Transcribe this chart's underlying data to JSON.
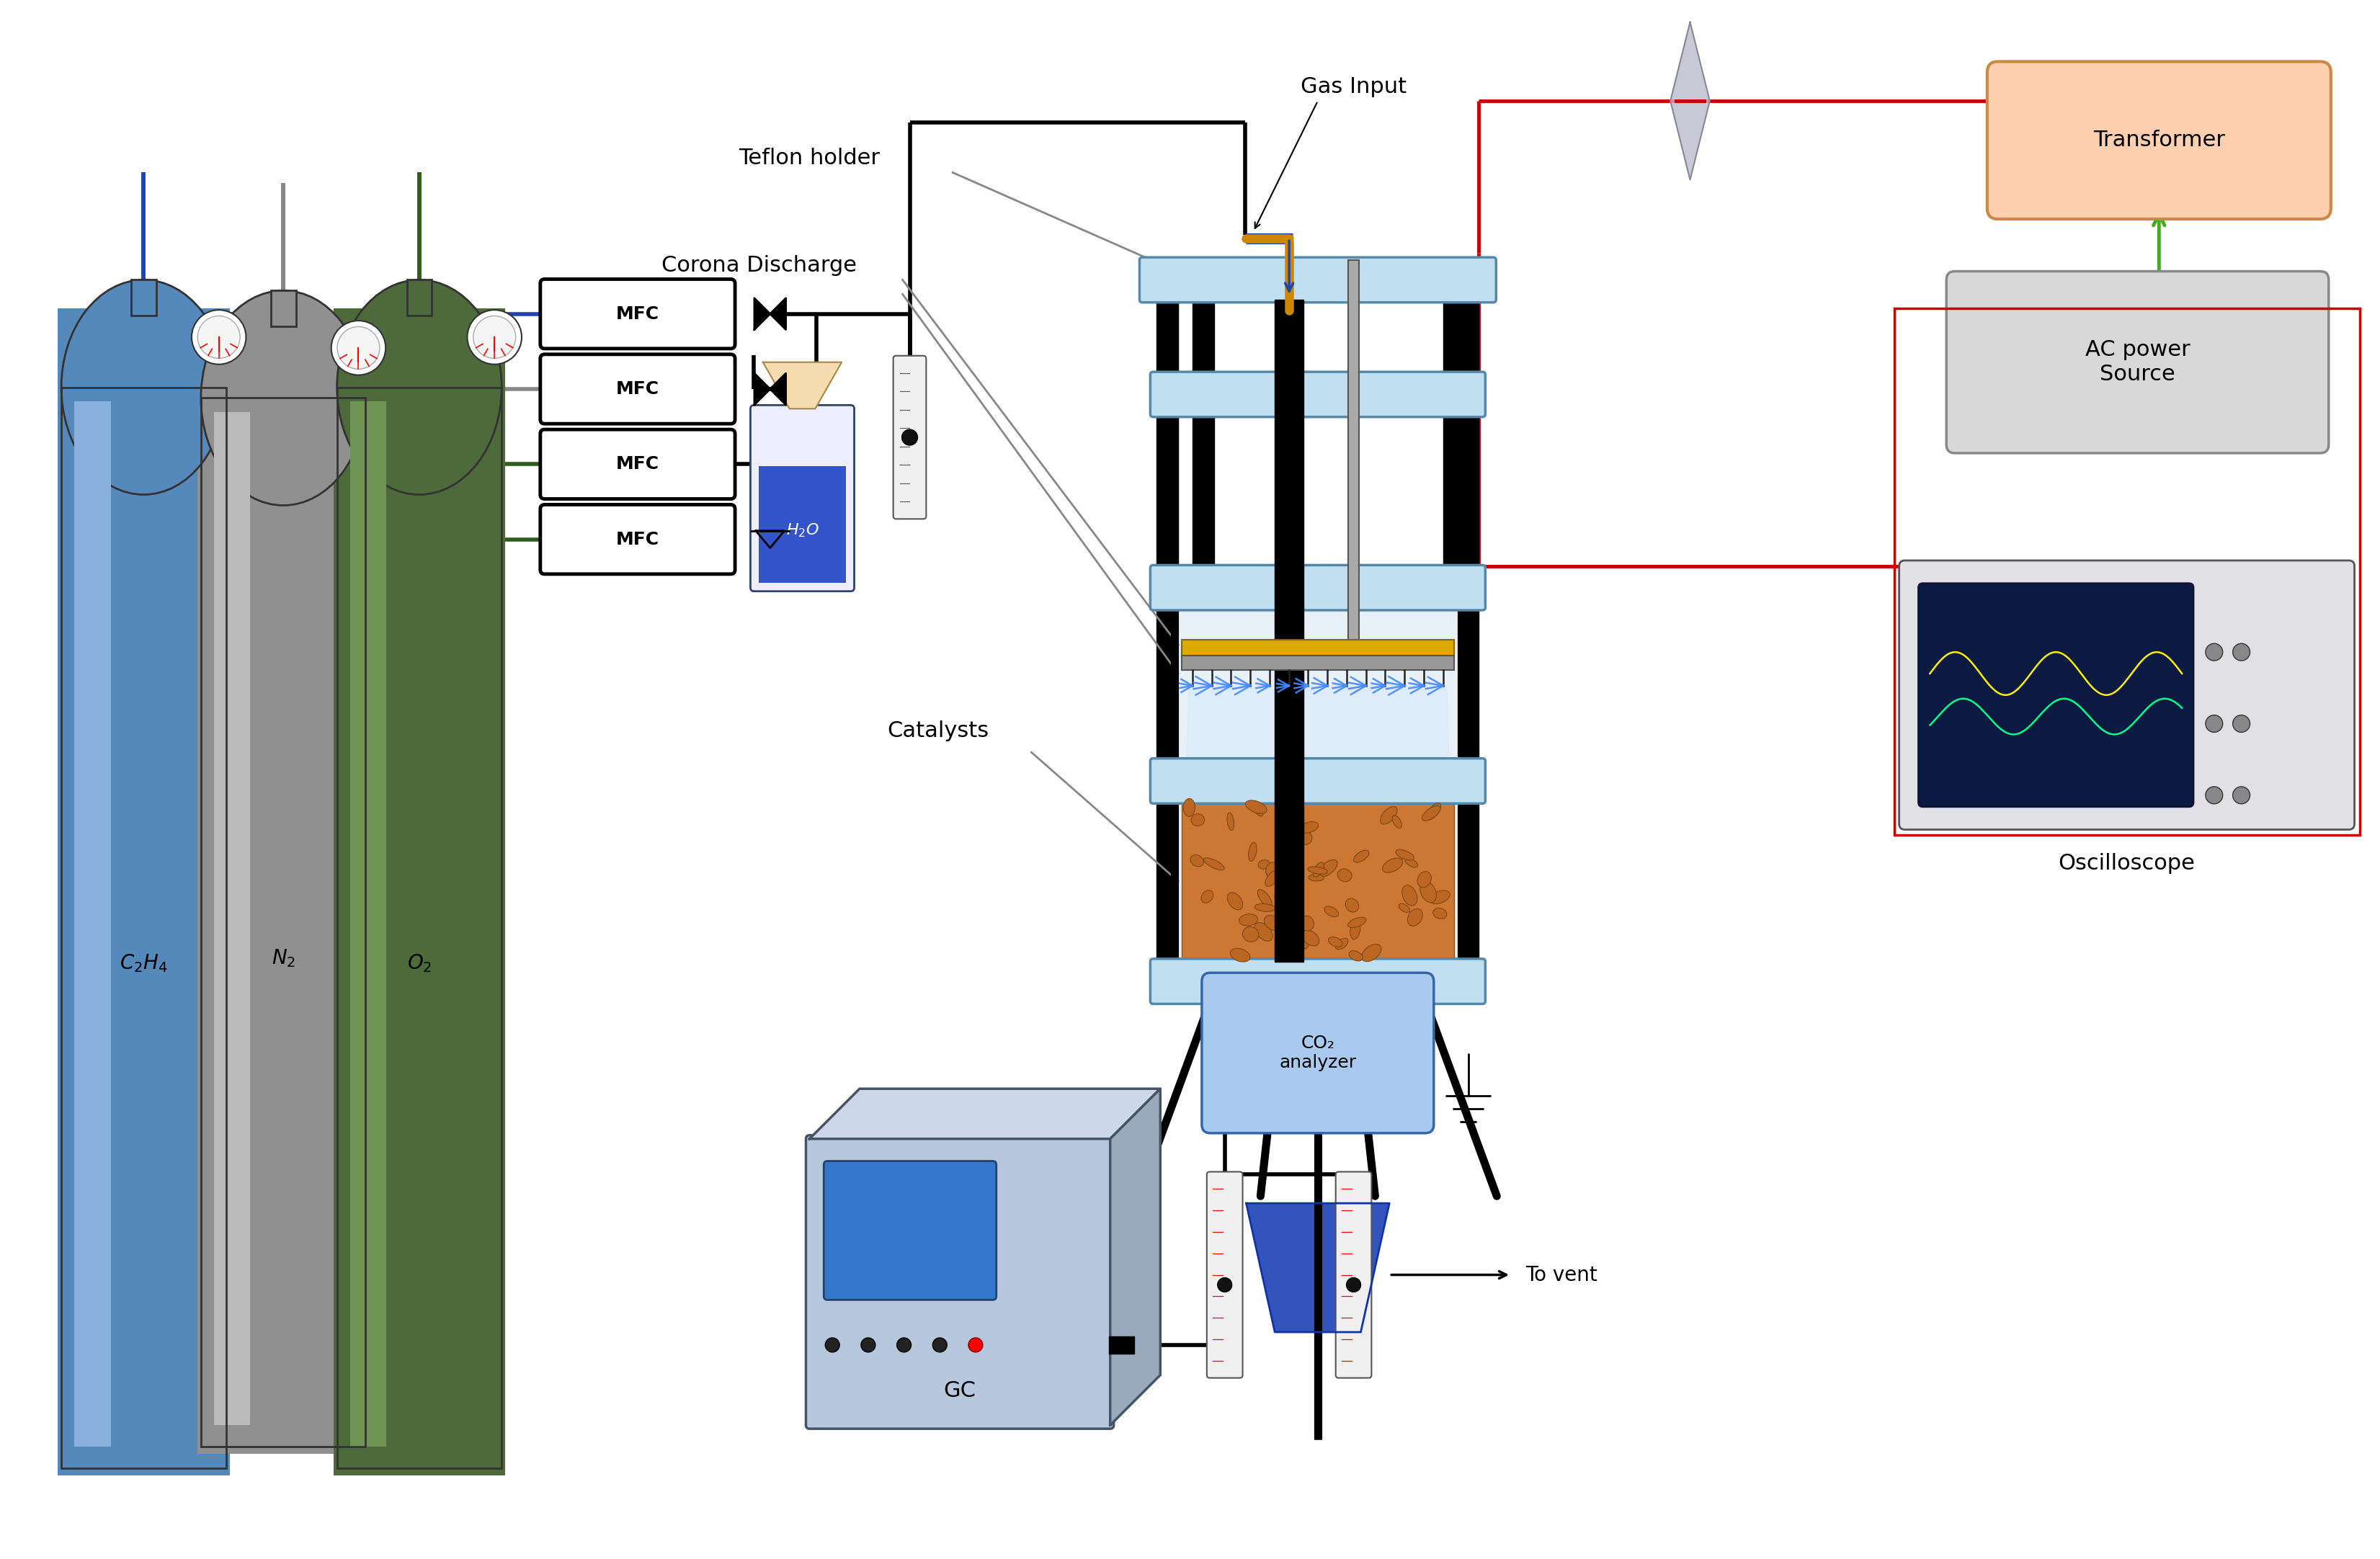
{
  "bg_color": "#ffffff",
  "labels": {
    "teflon_holder": "Teflon holder",
    "corona_discharge": "Corona Discharge",
    "gas_input": "Gas Input",
    "transformer": "Transformer",
    "ac_power": "AC power\nSource",
    "oscilloscope": "Oscilloscope",
    "mfc": "MFC",
    "h2o": "H₂O",
    "catalysts": "Catalysts",
    "co2_analyzer": "CO₂\nanalyzer",
    "gc": "GC",
    "to_vent": "To vent"
  },
  "colors": {
    "blue_line": "#0000cc",
    "gray_line": "#888888",
    "green_line": "#009900",
    "red_line": "#cc0000",
    "transformer_fill": "#ffd0b0",
    "transformer_border": "#cc8844",
    "ac_fill": "#d8d8d8",
    "ac_border": "#888888",
    "reactor_blue": "#c0dff0",
    "orange_fill": "#cc7733",
    "water_blue": "#3355cc",
    "cylinder_blue": "#5588bb",
    "cylinder_gray": "#909090",
    "cylinder_green": "#4d6b3a",
    "co2_fill": "#a8caee",
    "co2_border": "#3366aa",
    "gc_fill": "#b5c8dd",
    "green_arrow": "#44aa22",
    "black": "#000000"
  }
}
